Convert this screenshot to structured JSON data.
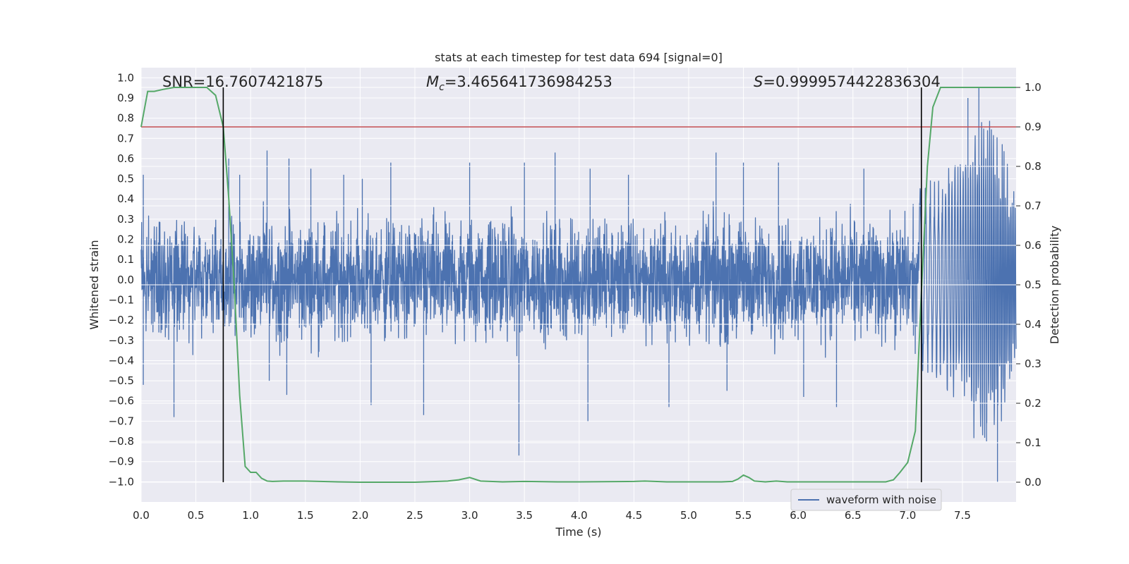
{
  "chart_data": {
    "type": "line",
    "title": "stats at each timestep for test data 694 [signal=0]",
    "xlabel": "Time (s)",
    "ylabel": "Whitened strain",
    "y2label": "Detection probability",
    "xlim": [
      0.0,
      7.99
    ],
    "ylim": [
      -1.1,
      1.05
    ],
    "y2lim": [
      -0.05,
      1.05
    ],
    "x_ticks": [
      0.0,
      0.5,
      1.0,
      1.5,
      2.0,
      2.5,
      3.0,
      3.5,
      4.0,
      4.5,
      5.0,
      5.5,
      6.0,
      6.5,
      7.0,
      7.5
    ],
    "x_tick_labels": [
      "0.0",
      "0.5",
      "1.0",
      "1.5",
      "2.0",
      "2.5",
      "3.0",
      "3.5",
      "4.0",
      "4.5",
      "5.0",
      "5.5",
      "6.0",
      "6.5",
      "7.0",
      "7.5"
    ],
    "y_ticks": [
      1.0,
      0.9,
      0.8,
      0.7,
      0.6,
      0.5,
      0.4,
      0.3,
      0.2,
      0.1,
      0.0,
      -0.1,
      -0.2,
      -0.3,
      -0.4,
      -0.5,
      -0.6,
      -0.7,
      -0.8,
      -0.9,
      -1.0
    ],
    "y_tick_labels": [
      "1.0",
      "0.9",
      "0.8",
      "0.7",
      "0.6",
      "0.5",
      "0.4",
      "0.3",
      "0.2",
      "0.1",
      "0.0",
      "−0.1",
      "−0.2",
      "−0.3",
      "−0.4",
      "−0.5",
      "−0.6",
      "−0.7",
      "−0.8",
      "−0.9",
      "−1.0"
    ],
    "y2_ticks": [
      1.0,
      0.9,
      0.8,
      0.7,
      0.6,
      0.5,
      0.4,
      0.3,
      0.2,
      0.1,
      0.0
    ],
    "y2_tick_labels": [
      "1.0",
      "0.9",
      "0.8",
      "0.7",
      "0.6",
      "0.5",
      "0.4",
      "0.3",
      "0.2",
      "0.1",
      "0.0"
    ],
    "grid": true,
    "annotations": {
      "snr": "SNR=16.7607421875",
      "mc_symbol": "M",
      "mc_sub": "c",
      "mc_value": "=3.465641736984253",
      "s_symbol": "S",
      "s_value": "=0.9999574422836304"
    },
    "legend": {
      "placement": "lower-right",
      "entries": [
        "waveform with noise"
      ]
    },
    "threshold": 0.9,
    "boundary_times": [
      0.75,
      7.125
    ],
    "series": [
      {
        "name": "waveform with noise",
        "axis": "left",
        "color": "#4c72b0",
        "envelope": [
          {
            "t": 0.0,
            "amp": 0.4
          },
          {
            "t": 0.3,
            "amp": 0.4
          },
          {
            "t": 0.75,
            "amp": 0.38
          },
          {
            "t": 1.0,
            "amp": 0.4
          },
          {
            "t": 6.9,
            "amp": 0.4
          },
          {
            "t": 7.1,
            "amp": 0.45
          },
          {
            "t": 7.3,
            "amp": 0.55
          },
          {
            "t": 7.5,
            "amp": 0.7
          },
          {
            "t": 7.65,
            "amp": 0.85
          },
          {
            "t": 7.8,
            "amp": 0.85
          },
          {
            "t": 7.99,
            "amp": 0.4
          }
        ],
        "peaks": [
          {
            "t": 0.02,
            "v": 0.52
          },
          {
            "t": 0.02,
            "v": -0.52
          },
          {
            "t": 0.3,
            "v": -0.68
          },
          {
            "t": 0.8,
            "v": 0.6
          },
          {
            "t": 0.9,
            "v": 0.52
          },
          {
            "t": 1.15,
            "v": 0.64
          },
          {
            "t": 1.17,
            "v": -0.5
          },
          {
            "t": 1.33,
            "v": -0.57
          },
          {
            "t": 1.35,
            "v": 0.6
          },
          {
            "t": 1.55,
            "v": 0.55
          },
          {
            "t": 1.85,
            "v": 0.52
          },
          {
            "t": 2.02,
            "v": 0.5
          },
          {
            "t": 2.1,
            "v": -0.62
          },
          {
            "t": 2.28,
            "v": 0.58
          },
          {
            "t": 2.58,
            "v": -0.67
          },
          {
            "t": 3.0,
            "v": 0.58
          },
          {
            "t": 3.45,
            "v": -0.87
          },
          {
            "t": 3.5,
            "v": 0.58
          },
          {
            "t": 3.78,
            "v": 0.63
          },
          {
            "t": 4.08,
            "v": -0.7
          },
          {
            "t": 4.1,
            "v": 0.55
          },
          {
            "t": 4.45,
            "v": 0.52
          },
          {
            "t": 4.82,
            "v": -0.63
          },
          {
            "t": 5.25,
            "v": 0.63
          },
          {
            "t": 5.35,
            "v": -0.55
          },
          {
            "t": 5.5,
            "v": 0.58
          },
          {
            "t": 5.82,
            "v": 0.58
          },
          {
            "t": 6.05,
            "v": -0.58
          },
          {
            "t": 6.35,
            "v": -0.63
          },
          {
            "t": 6.6,
            "v": 0.55
          },
          {
            "t": 7.65,
            "v": 0.95
          },
          {
            "t": 7.82,
            "v": -1.0
          },
          {
            "t": 7.72,
            "v": -0.8
          },
          {
            "t": 7.55,
            "v": 0.9
          }
        ]
      },
      {
        "name": "",
        "axis": "right",
        "color": "#55a868",
        "x": [
          0.0,
          0.06,
          0.12,
          0.2,
          0.3,
          0.4,
          0.5,
          0.6,
          0.68,
          0.75,
          0.8,
          0.85,
          0.9,
          0.95,
          1.0,
          1.05,
          1.1,
          1.15,
          1.2,
          1.3,
          1.5,
          1.8,
          2.0,
          2.5,
          2.8,
          2.9,
          3.0,
          3.1,
          3.3,
          3.5,
          3.8,
          4.0,
          4.5,
          4.6,
          4.8,
          5.0,
          5.3,
          5.4,
          5.45,
          5.5,
          5.55,
          5.6,
          5.7,
          5.8,
          5.9,
          6.0,
          6.5,
          6.8,
          6.87,
          6.93,
          7.0,
          7.07,
          7.12,
          7.18,
          7.23,
          7.3,
          7.38,
          7.5,
          7.7,
          7.9,
          7.99
        ],
        "y": [
          0.9,
          0.99,
          0.99,
          0.995,
          1.0,
          1.0,
          1.0,
          1.0,
          0.98,
          0.9,
          0.72,
          0.5,
          0.22,
          0.04,
          0.025,
          0.025,
          0.01,
          0.003,
          0.002,
          0.003,
          0.003,
          0.001,
          0.0,
          0.0,
          0.003,
          0.006,
          0.012,
          0.003,
          0.001,
          0.002,
          0.001,
          0.001,
          0.002,
          0.003,
          0.001,
          0.001,
          0.001,
          0.002,
          0.008,
          0.018,
          0.012,
          0.003,
          0.001,
          0.003,
          0.001,
          0.001,
          0.001,
          0.001,
          0.006,
          0.025,
          0.05,
          0.13,
          0.45,
          0.8,
          0.95,
          1.0,
          1.0,
          1.0,
          1.0,
          1.0,
          1.0
        ]
      }
    ],
    "colors": {
      "plot_background": "#eaeaf2",
      "grid": "#ffffff",
      "threshold_line": "#c44e52",
      "boundary_lines": "#000000"
    }
  }
}
